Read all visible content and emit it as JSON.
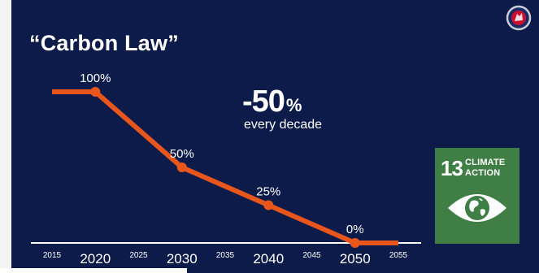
{
  "slide": {
    "title": "“Carbon Law”",
    "headline_value": "-50",
    "headline_unit": "%",
    "headline_sub": "every decade"
  },
  "sdg": {
    "number": "13",
    "line1": "CLIMATE",
    "line2": "ACTION",
    "icon": "eye-earth-icon",
    "color": "#3f7e44"
  },
  "logo": {
    "icon": "griffin-crest-icon"
  },
  "colors": {
    "background": "#0d1b4a",
    "line": "#e8561c",
    "text": "#ffffff"
  },
  "chart_data": {
    "type": "line",
    "title": "“Carbon Law”",
    "xlabel": "",
    "ylabel": "",
    "x_ticks": [
      2015,
      2020,
      2025,
      2030,
      2035,
      2040,
      2045,
      2050,
      2055
    ],
    "major_ticks": [
      2020,
      2030,
      2040,
      2050
    ],
    "xlim": [
      2015,
      2055
    ],
    "ylim": [
      0,
      100
    ],
    "grid": false,
    "series": [
      {
        "x": [
          2015,
          2020,
          2030,
          2040,
          2050,
          2055
        ],
        "y": [
          100,
          100,
          50,
          25,
          0,
          0
        ]
      }
    ],
    "data_labels": [
      {
        "x": 2020,
        "y": 100,
        "text": "100%"
      },
      {
        "x": 2030,
        "y": 50,
        "text": "50%"
      },
      {
        "x": 2040,
        "y": 25,
        "text": "25%"
      },
      {
        "x": 2050,
        "y": 0,
        "text": "0%"
      }
    ]
  }
}
